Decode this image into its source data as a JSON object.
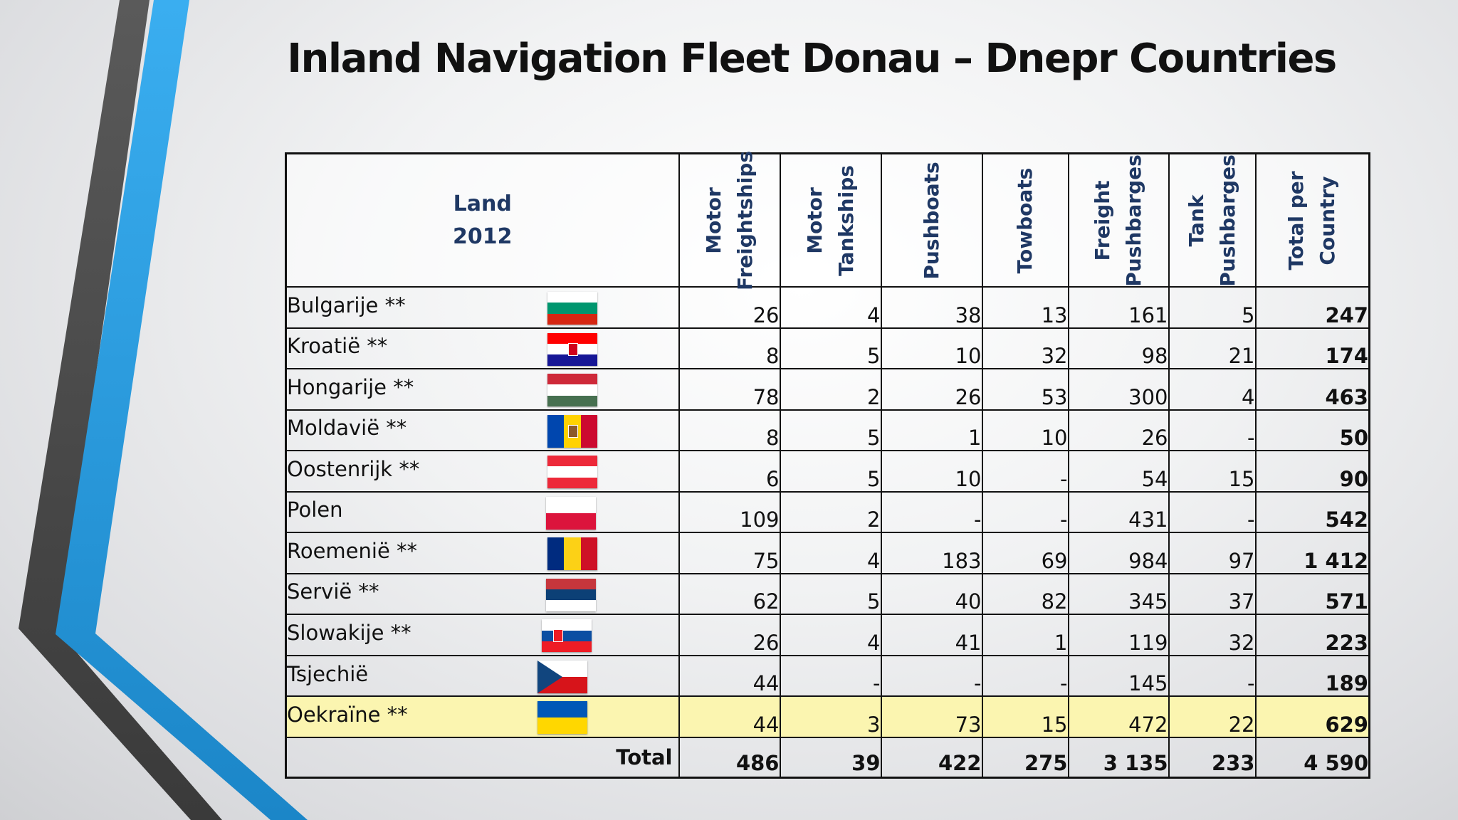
{
  "title": "Inland Navigation Fleet Donau – Dnepr Countries",
  "header": {
    "land_line1": "Land",
    "land_line2": "2012",
    "columns": [
      {
        "line1": "Motor",
        "line2": "Freightships"
      },
      {
        "line1": "Motor",
        "line2": "Tankships"
      },
      {
        "line1": "Pushboats",
        "line2": ""
      },
      {
        "line1": "Towboats",
        "line2": ""
      },
      {
        "line1": "Freight",
        "line2": "Pushbarges"
      },
      {
        "line1": "Tank",
        "line2": "Pushbarges"
      },
      {
        "line1": "Total per",
        "line2": "Country"
      }
    ]
  },
  "rows": [
    {
      "country": "Bulgarije **",
      "flag": "flag-bulgaria",
      "values": [
        "26",
        "4",
        "38",
        "13",
        "161",
        "5",
        "247"
      ]
    },
    {
      "country": "Kroatië **",
      "flag": "flag-croatia",
      "values": [
        "8",
        "5",
        "10",
        "32",
        "98",
        "21",
        "174"
      ]
    },
    {
      "country": "Hongarije **",
      "flag": "flag-hungary",
      "values": [
        "78",
        "2",
        "26",
        "53",
        "300",
        "4",
        "463"
      ]
    },
    {
      "country": "Moldavië **",
      "flag": "flag-moldova",
      "values": [
        "8",
        "5",
        "1",
        "10",
        "26",
        "-",
        "50"
      ]
    },
    {
      "country": "Oostenrijk **",
      "flag": "flag-austria",
      "values": [
        "6",
        "5",
        "10",
        "-",
        "54",
        "15",
        "90"
      ]
    },
    {
      "country": "Polen",
      "flag": "flag-poland",
      "values": [
        "109",
        "2",
        "-",
        "-",
        "431",
        "-",
        "542"
      ]
    },
    {
      "country": "Roemenië **",
      "flag": "flag-romania",
      "values": [
        "75",
        "4",
        "183",
        "69",
        "984",
        "97",
        "1 412"
      ]
    },
    {
      "country": "Servië **",
      "flag": "flag-serbia",
      "values": [
        "62",
        "5",
        "40",
        "82",
        "345",
        "37",
        "571"
      ]
    },
    {
      "country": "Slowakije **",
      "flag": "flag-slovakia",
      "values": [
        "26",
        "4",
        "41",
        "1",
        "119",
        "32",
        "223"
      ]
    },
    {
      "country": "Tsjechië",
      "flag": "flag-czechia",
      "values": [
        "44",
        "-",
        "-",
        "-",
        "145",
        "-",
        "189"
      ]
    },
    {
      "country": "Oekraïne **",
      "flag": "flag-ukraine",
      "values": [
        "44",
        "3",
        "73",
        "15",
        "472",
        "22",
        "629"
      ]
    }
  ],
  "total": {
    "label": "Total",
    "values": [
      "486",
      "39",
      "422",
      "275",
      "3 135",
      "233",
      "4 590"
    ]
  },
  "colors": {
    "header_text": "#1f3864",
    "highlight_row": "#fbf5b0",
    "accent_blue": "#2b9fe0",
    "deco_dark": "#4a4a4a"
  }
}
